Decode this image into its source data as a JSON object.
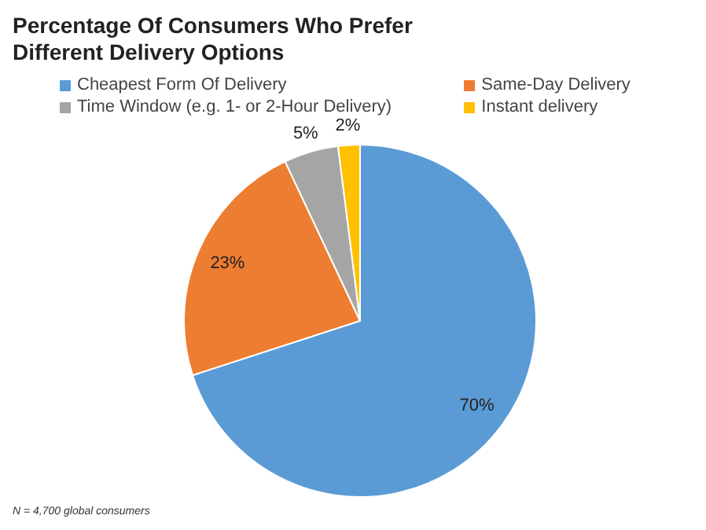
{
  "chart_data": {
    "type": "pie",
    "title": "Percentage Of Consumers Who Prefer Different Delivery Options",
    "categories": [
      "Cheapest Form Of Delivery",
      "Same-Day Delivery",
      "Time Window (e.g. 1- or 2-Hour Delivery)",
      "Instant delivery"
    ],
    "values": [
      70,
      23,
      5,
      2
    ],
    "colors": [
      "#5b9bd5",
      "#ed7d31",
      "#a5a5a5",
      "#ffc000"
    ],
    "value_labels": [
      "70%",
      "23%",
      "5%",
      "2%"
    ],
    "legend": "top",
    "annotations": [
      "N = 4,700 global consumers"
    ]
  }
}
